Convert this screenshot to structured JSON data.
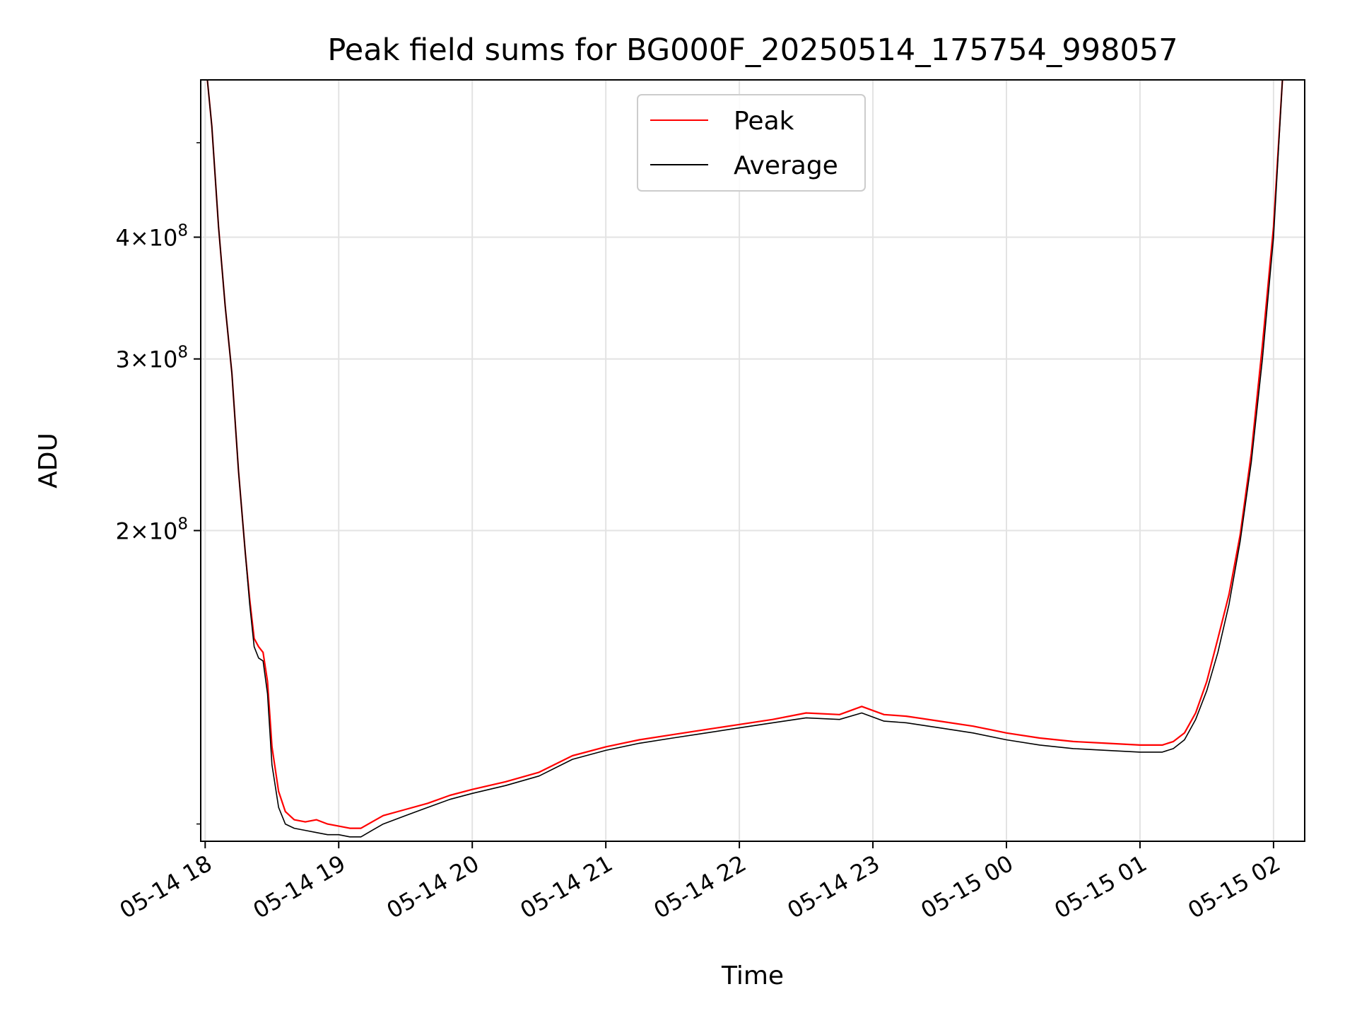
{
  "chart_data": {
    "type": "line",
    "title": "Peak field sums for BG000F_20250514_175754_998057",
    "xlabel": "Time",
    "ylabel": "ADU",
    "yscale": "log",
    "grid": true,
    "legend_position": "top-center",
    "xlim": [
      "2025-05-14 17:58",
      "2025-05-15 02:14"
    ],
    "ylim": [
      96000000,
      580000000
    ],
    "x_ticks": [
      {
        "value": "2025-05-14 18:00",
        "label": "05-14 18"
      },
      {
        "value": "2025-05-14 19:00",
        "label": "05-14 19"
      },
      {
        "value": "2025-05-14 20:00",
        "label": "05-14 20"
      },
      {
        "value": "2025-05-14 21:00",
        "label": "05-14 21"
      },
      {
        "value": "2025-05-14 22:00",
        "label": "05-14 22"
      },
      {
        "value": "2025-05-14 23:00",
        "label": "05-14 23"
      },
      {
        "value": "2025-05-15 00:00",
        "label": "05-15 00"
      },
      {
        "value": "2025-05-15 01:00",
        "label": "05-15 01"
      },
      {
        "value": "2025-05-15 02:00",
        "label": "05-15 02"
      }
    ],
    "y_ticks": [
      {
        "value": 200000000,
        "mantissa": "2",
        "exponent": "8"
      },
      {
        "value": 300000000,
        "mantissa": "3",
        "exponent": "8"
      },
      {
        "value": 400000000,
        "mantissa": "4",
        "exponent": "8"
      }
    ],
    "series": [
      {
        "name": "Peak",
        "color": "#ff0000",
        "x": [
          "2025-05-14 18:01",
          "2025-05-14 18:03",
          "2025-05-14 18:06",
          "2025-05-14 18:09",
          "2025-05-14 18:12",
          "2025-05-14 18:15",
          "2025-05-14 18:18",
          "2025-05-14 18:20",
          "2025-05-14 18:22",
          "2025-05-14 18:24",
          "2025-05-14 18:26",
          "2025-05-14 18:28",
          "2025-05-14 18:30",
          "2025-05-14 18:33",
          "2025-05-14 18:36",
          "2025-05-14 18:40",
          "2025-05-14 18:45",
          "2025-05-14 18:50",
          "2025-05-14 18:55",
          "2025-05-14 19:00",
          "2025-05-14 19:05",
          "2025-05-14 19:10",
          "2025-05-14 19:15",
          "2025-05-14 19:20",
          "2025-05-14 19:30",
          "2025-05-14 19:40",
          "2025-05-14 19:50",
          "2025-05-14 20:00",
          "2025-05-14 20:15",
          "2025-05-14 20:30",
          "2025-05-14 20:45",
          "2025-05-14 21:00",
          "2025-05-14 21:15",
          "2025-05-14 21:30",
          "2025-05-14 21:45",
          "2025-05-14 22:00",
          "2025-05-14 22:15",
          "2025-05-14 22:30",
          "2025-05-14 22:45",
          "2025-05-14 22:55",
          "2025-05-14 23:05",
          "2025-05-14 23:15",
          "2025-05-14 23:30",
          "2025-05-14 23:45",
          "2025-05-15 00:00",
          "2025-05-15 00:15",
          "2025-05-15 00:30",
          "2025-05-15 00:45",
          "2025-05-15 01:00",
          "2025-05-15 01:10",
          "2025-05-15 01:15",
          "2025-05-15 01:20",
          "2025-05-15 01:25",
          "2025-05-15 01:30",
          "2025-05-15 01:35",
          "2025-05-15 01:40",
          "2025-05-15 01:45",
          "2025-05-15 01:50",
          "2025-05-15 01:55",
          "2025-05-15 02:00",
          "2025-05-15 02:04"
        ],
        "y": [
          580000000,
          520000000,
          410000000,
          340000000,
          290000000,
          230000000,
          190000000,
          170000000,
          155000000,
          152000000,
          150000000,
          140000000,
          120000000,
          108000000,
          103000000,
          101000000,
          100500000,
          101000000,
          100000000,
          99500000,
          99000000,
          99000000,
          100500000,
          102000000,
          103500000,
          105000000,
          107000000,
          108500000,
          110500000,
          113000000,
          117500000,
          120000000,
          122000000,
          123500000,
          125000000,
          126500000,
          128000000,
          130000000,
          129500000,
          132000000,
          129500000,
          129000000,
          127500000,
          126000000,
          124000000,
          122500000,
          121500000,
          121000000,
          120500000,
          120500000,
          121500000,
          124000000,
          130000000,
          140000000,
          155000000,
          172000000,
          198000000,
          240000000,
          310000000,
          410000000,
          580000000
        ]
      },
      {
        "name": "Average",
        "color": "#000000",
        "x": [
          "2025-05-14 18:01",
          "2025-05-14 18:03",
          "2025-05-14 18:06",
          "2025-05-14 18:09",
          "2025-05-14 18:12",
          "2025-05-14 18:15",
          "2025-05-14 18:18",
          "2025-05-14 18:20",
          "2025-05-14 18:22",
          "2025-05-14 18:24",
          "2025-05-14 18:26",
          "2025-05-14 18:28",
          "2025-05-14 18:30",
          "2025-05-14 18:33",
          "2025-05-14 18:36",
          "2025-05-14 18:40",
          "2025-05-14 18:45",
          "2025-05-14 18:50",
          "2025-05-14 18:55",
          "2025-05-14 19:00",
          "2025-05-14 19:05",
          "2025-05-14 19:10",
          "2025-05-14 19:15",
          "2025-05-14 19:20",
          "2025-05-14 19:30",
          "2025-05-14 19:40",
          "2025-05-14 19:50",
          "2025-05-14 20:00",
          "2025-05-14 20:15",
          "2025-05-14 20:30",
          "2025-05-14 20:45",
          "2025-05-14 21:00",
          "2025-05-14 21:15",
          "2025-05-14 21:30",
          "2025-05-14 21:45",
          "2025-05-14 22:00",
          "2025-05-14 22:15",
          "2025-05-14 22:30",
          "2025-05-14 22:45",
          "2025-05-14 22:55",
          "2025-05-14 23:05",
          "2025-05-14 23:15",
          "2025-05-14 23:30",
          "2025-05-14 23:45",
          "2025-05-15 00:00",
          "2025-05-15 00:15",
          "2025-05-15 00:30",
          "2025-05-15 00:45",
          "2025-05-15 01:00",
          "2025-05-15 01:10",
          "2025-05-15 01:15",
          "2025-05-15 01:20",
          "2025-05-15 01:25",
          "2025-05-15 01:30",
          "2025-05-15 01:35",
          "2025-05-15 01:40",
          "2025-05-15 01:45",
          "2025-05-15 01:50",
          "2025-05-15 01:55",
          "2025-05-15 02:00",
          "2025-05-15 02:04"
        ],
        "y": [
          580000000,
          520000000,
          410000000,
          340000000,
          290000000,
          230000000,
          190000000,
          168000000,
          152000000,
          148000000,
          147000000,
          136000000,
          115000000,
          104000000,
          100000000,
          99000000,
          98500000,
          98000000,
          97500000,
          97500000,
          97000000,
          97000000,
          98500000,
          100000000,
          102000000,
          104000000,
          106000000,
          107500000,
          109500000,
          112000000,
          116500000,
          119000000,
          121000000,
          122500000,
          124000000,
          125500000,
          127000000,
          128500000,
          128000000,
          130000000,
          127500000,
          127000000,
          125500000,
          124000000,
          122000000,
          120500000,
          119500000,
          119000000,
          118500000,
          118500000,
          119500000,
          122000000,
          128000000,
          137000000,
          150000000,
          168000000,
          195000000,
          235000000,
          300000000,
          400000000,
          580000000
        ]
      }
    ]
  }
}
